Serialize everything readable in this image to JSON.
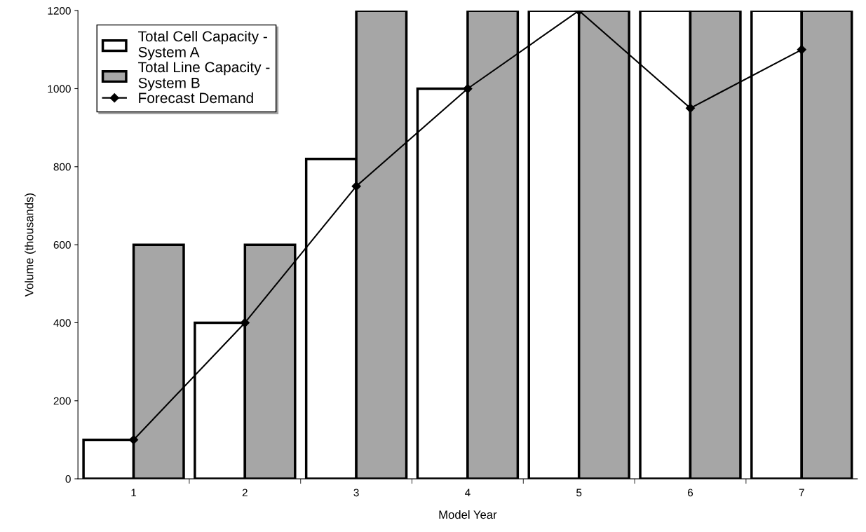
{
  "chart_data": {
    "type": "bar",
    "xlabel": "Model Year",
    "ylabel": "Volume (thousands)",
    "categories": [
      "1",
      "2",
      "3",
      "4",
      "5",
      "6",
      "7"
    ],
    "series": [
      {
        "name": "Total Cell Capacity -\nSystem A",
        "color": "#ffffff",
        "values": [
          100,
          400,
          820,
          1000,
          1200,
          1200,
          1200
        ]
      },
      {
        "name": "Total Line Capacity -\nSystem B",
        "color": "#a6a6a6",
        "values": [
          600,
          600,
          1200,
          1200,
          1200,
          1200,
          1200
        ]
      },
      {
        "name": "Forecast Demand",
        "type": "line",
        "color": "#000000",
        "marker": "diamond",
        "values": [
          100,
          400,
          750,
          1000,
          1200,
          950,
          1100
        ]
      }
    ],
    "ylim": [
      0,
      1200
    ],
    "yticks": [
      0,
      200,
      400,
      600,
      800,
      1000,
      1200
    ],
    "grid": false,
    "legend": "top left"
  }
}
